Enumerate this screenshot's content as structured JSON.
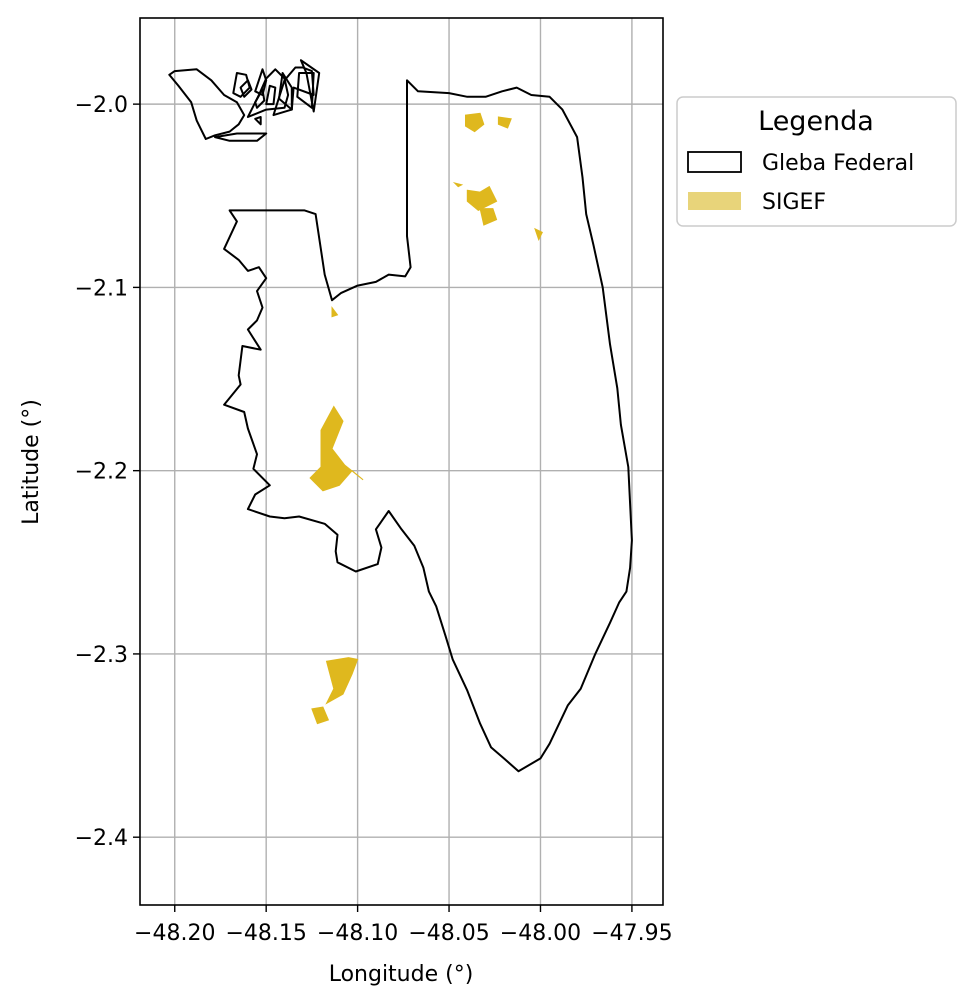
{
  "chart_data": {
    "type": "map",
    "xlabel": "Longitude (°)",
    "ylabel": "Latitude (°)",
    "xlim": [
      -48.219,
      -47.933
    ],
    "ylim": [
      -2.437,
      -1.953
    ],
    "grid": true,
    "x_ticks": [
      -48.2,
      -48.15,
      -48.1,
      -48.05,
      -48.0,
      -47.95
    ],
    "x_tick_labels": [
      "−48.20",
      "−48.15",
      "−48.10",
      "−48.05",
      "−48.00",
      "−47.95"
    ],
    "y_ticks": [
      -2.0,
      -2.1,
      -2.2,
      -2.3,
      -2.4
    ],
    "y_tick_labels": [
      "−2.0",
      "−2.1",
      "−2.2",
      "−2.3",
      "−2.4"
    ],
    "legend": {
      "title": "Legenda",
      "placement": "outside-right-top",
      "entries": [
        {
          "label": "Gleba Federal",
          "style": "outline",
          "color": "#000000"
        },
        {
          "label": "SIGEF",
          "style": "fill",
          "color": "#e8d47a"
        }
      ]
    },
    "colors": {
      "gleba_outline": "#000000",
      "sigef_fill": "#dfb81e",
      "grid": "#b0b0b0"
    },
    "layers": [
      {
        "name": "Gleba Federal",
        "features": [
          [
            [
              -48.2,
              -1.982
            ],
            [
              -48.188,
              -1.981
            ],
            [
              -48.18,
              -1.987
            ],
            [
              -48.173,
              -1.995
            ],
            [
              -48.166,
              -1.999
            ],
            [
              -48.162,
              -2.006
            ],
            [
              -48.165,
              -2.011
            ],
            [
              -48.17,
              -2.015
            ],
            [
              -48.178,
              -2.017
            ],
            [
              -48.183,
              -2.019
            ],
            [
              -48.188,
              -2.009
            ],
            [
              -48.191,
              -1.999
            ],
            [
              -48.198,
              -1.99
            ],
            [
              -48.203,
              -1.984
            ],
            [
              -48.2,
              -1.982
            ]
          ],
          [
            [
              -48.15,
              -1.986
            ],
            [
              -48.145,
              -1.981
            ],
            [
              -48.14,
              -1.986
            ],
            [
              -48.138,
              -1.995
            ],
            [
              -48.14,
              -2.002
            ],
            [
              -48.15,
              -2.003
            ],
            [
              -48.16,
              -2.007
            ],
            [
              -48.154,
              -1.995
            ],
            [
              -48.15,
              -1.986
            ]
          ],
          [
            [
              -48.168,
              -1.994
            ],
            [
              -48.166,
              -1.983
            ],
            [
              -48.161,
              -1.984
            ],
            [
              -48.159,
              -1.991
            ],
            [
              -48.164,
              -1.996
            ],
            [
              -48.168,
              -1.994
            ]
          ],
          [
            [
              -48.156,
              -1.993
            ],
            [
              -48.152,
              -1.981
            ],
            [
              -48.15,
              -1.987
            ],
            [
              -48.152,
              -1.995
            ],
            [
              -48.156,
              -1.993
            ]
          ],
          [
            [
              -48.164,
              -1.991
            ],
            [
              -48.16,
              -1.987
            ],
            [
              -48.158,
              -1.992
            ],
            [
              -48.162,
              -1.996
            ],
            [
              -48.164,
              -1.991
            ]
          ],
          [
            [
              -48.15,
              -2.0
            ],
            [
              -48.148,
              -1.99
            ],
            [
              -48.145,
              -1.991
            ],
            [
              -48.146,
              -2.0
            ],
            [
              -48.15,
              -2.0
            ]
          ],
          [
            [
              -48.146,
              -2.006
            ],
            [
              -48.14,
              -1.987
            ],
            [
              -48.134,
              -1.98
            ],
            [
              -48.13,
              -1.98
            ],
            [
              -48.125,
              -1.982
            ],
            [
              -48.124,
              -1.995
            ],
            [
              -48.135,
              -1.991
            ],
            [
              -48.136,
              -2.003
            ],
            [
              -48.146,
              -2.006
            ]
          ],
          [
            [
              -48.156,
              -1.999
            ],
            [
              -48.152,
              -1.992
            ],
            [
              -48.151,
              -1.998
            ],
            [
              -48.155,
              -2.002
            ],
            [
              -48.156,
              -1.999
            ]
          ],
          [
            [
              -48.136,
              -2.003
            ],
            [
              -48.136,
              -1.991
            ],
            [
              -48.141,
              -1.983
            ],
            [
              -48.143,
              -1.997
            ],
            [
              -48.136,
              -2.003
            ]
          ],
          [
            [
              -48.125,
              -2.002
            ],
            [
              -48.124,
              -1.983
            ],
            [
              -48.132,
              -1.983
            ],
            [
              -48.133,
              -1.996
            ],
            [
              -48.125,
              -2.002
            ]
          ],
          [
            [
              -48.15,
              -2.016
            ],
            [
              -48.166,
              -2.016
            ],
            [
              -48.178,
              -2.018
            ],
            [
              -48.17,
              -2.02
            ],
            [
              -48.155,
              -2.02
            ],
            [
              -48.15,
              -2.016
            ]
          ],
          [
            [
              -48.124,
              -2.004
            ],
            [
              -48.121,
              -1.983
            ],
            [
              -48.131,
              -1.976
            ],
            [
              -48.128,
              -1.983
            ],
            [
              -48.124,
              -2.004
            ]
          ],
          [
            [
              -48.153,
              -2.007
            ],
            [
              -48.156,
              -2.008
            ],
            [
              -48.153,
              -2.011
            ],
            [
              -48.153,
              -2.007
            ]
          ],
          [
            [
              -48.05,
              -1.994
            ],
            [
              -48.067,
              -1.993
            ],
            [
              -48.073,
              -1.987
            ],
            [
              -48.073,
              -2.009
            ],
            [
              -48.073,
              -2.072
            ],
            [
              -48.071,
              -2.089
            ],
            [
              -48.074,
              -2.094
            ],
            [
              -48.083,
              -2.093
            ],
            [
              -48.09,
              -2.097
            ],
            [
              -48.1,
              -2.099
            ],
            [
              -48.109,
              -2.103
            ],
            [
              -48.114,
              -2.107
            ],
            [
              -48.118,
              -2.093
            ],
            [
              -48.123,
              -2.06
            ],
            [
              -48.129,
              -2.058
            ],
            [
              -48.148,
              -2.058
            ],
            [
              -48.17,
              -2.058
            ],
            [
              -48.166,
              -2.064
            ],
            [
              -48.173,
              -2.079
            ],
            [
              -48.165,
              -2.085
            ],
            [
              -48.16,
              -2.091
            ],
            [
              -48.154,
              -2.089
            ],
            [
              -48.15,
              -2.095
            ],
            [
              -48.155,
              -2.102
            ],
            [
              -48.152,
              -2.111
            ],
            [
              -48.155,
              -2.118
            ],
            [
              -48.16,
              -2.123
            ],
            [
              -48.153,
              -2.134
            ],
            [
              -48.163,
              -2.132
            ],
            [
              -48.165,
              -2.148
            ],
            [
              -48.164,
              -2.153
            ],
            [
              -48.173,
              -2.164
            ],
            [
              -48.162,
              -2.168
            ],
            [
              -48.16,
              -2.177
            ],
            [
              -48.155,
              -2.191
            ],
            [
              -48.157,
              -2.199
            ],
            [
              -48.148,
              -2.208
            ],
            [
              -48.156,
              -2.213
            ],
            [
              -48.16,
              -2.221
            ],
            [
              -48.148,
              -2.225
            ],
            [
              -48.14,
              -2.226
            ],
            [
              -48.132,
              -2.225
            ],
            [
              -48.118,
              -2.229
            ],
            [
              -48.111,
              -2.235
            ],
            [
              -48.112,
              -2.244
            ],
            [
              -48.111,
              -2.25
            ],
            [
              -48.101,
              -2.255
            ],
            [
              -48.089,
              -2.251
            ],
            [
              -48.087,
              -2.242
            ],
            [
              -48.09,
              -2.232
            ],
            [
              -48.083,
              -2.222
            ],
            [
              -48.076,
              -2.232
            ],
            [
              -48.069,
              -2.241
            ],
            [
              -48.064,
              -2.253
            ],
            [
              -48.061,
              -2.266
            ],
            [
              -48.057,
              -2.274
            ],
            [
              -48.052,
              -2.29
            ],
            [
              -48.048,
              -2.303
            ],
            [
              -48.04,
              -2.32
            ],
            [
              -48.033,
              -2.338
            ],
            [
              -48.027,
              -2.351
            ],
            [
              -48.02,
              -2.357
            ],
            [
              -48.012,
              -2.364
            ],
            [
              -48.0,
              -2.357
            ],
            [
              -47.995,
              -2.349
            ],
            [
              -47.985,
              -2.328
            ],
            [
              -47.978,
              -2.319
            ],
            [
              -47.97,
              -2.3
            ],
            [
              -47.962,
              -2.283
            ],
            [
              -47.957,
              -2.272
            ],
            [
              -47.953,
              -2.266
            ],
            [
              -47.951,
              -2.253
            ],
            [
              -47.95,
              -2.238
            ],
            [
              -47.951,
              -2.218
            ],
            [
              -47.952,
              -2.198
            ],
            [
              -47.956,
              -2.175
            ],
            [
              -47.958,
              -2.155
            ],
            [
              -47.962,
              -2.131
            ],
            [
              -47.966,
              -2.1
            ],
            [
              -47.971,
              -2.077
            ],
            [
              -47.975,
              -2.06
            ],
            [
              -47.977,
              -2.04
            ],
            [
              -47.98,
              -2.018
            ],
            [
              -47.988,
              -2.003
            ],
            [
              -47.995,
              -1.996
            ],
            [
              -48.005,
              -1.995
            ],
            [
              -48.013,
              -1.991
            ],
            [
              -48.021,
              -1.993
            ],
            [
              -48.03,
              -1.996
            ],
            [
              -48.04,
              -1.996
            ],
            [
              -48.05,
              -1.994
            ]
          ]
        ]
      },
      {
        "name": "SIGEF",
        "features": [
          [
            [
              -48.041,
              -2.006
            ],
            [
              -48.033,
              -2.005
            ],
            [
              -48.031,
              -2.011
            ],
            [
              -48.036,
              -2.015
            ],
            [
              -48.041,
              -2.012
            ],
            [
              -48.041,
              -2.006
            ]
          ],
          [
            [
              -48.023,
              -2.007
            ],
            [
              -48.016,
              -2.008
            ],
            [
              -48.018,
              -2.013
            ],
            [
              -48.023,
              -2.011
            ],
            [
              -48.023,
              -2.007
            ]
          ],
          [
            [
              -48.04,
              -2.047
            ],
            [
              -48.033,
              -2.048
            ],
            [
              -48.028,
              -2.045
            ],
            [
              -48.024,
              -2.053
            ],
            [
              -48.034,
              -2.058
            ],
            [
              -48.04,
              -2.053
            ],
            [
              -48.04,
              -2.047
            ]
          ],
          [
            [
              -48.033,
              -2.057
            ],
            [
              -48.026,
              -2.057
            ],
            [
              -48.024,
              -2.063
            ],
            [
              -48.031,
              -2.066
            ],
            [
              -48.033,
              -2.057
            ]
          ],
          [
            [
              -48.003,
              -2.068
            ],
            [
              -47.999,
              -2.07
            ],
            [
              -48.001,
              -2.074
            ],
            [
              -48.003,
              -2.068
            ]
          ],
          [
            [
              -48.047,
              -2.043
            ],
            [
              -48.045,
              -2.045
            ],
            [
              -48.043,
              -2.044
            ],
            [
              -48.047,
              -2.043
            ]
          ],
          [
            [
              -48.114,
              -2.111
            ],
            [
              -48.111,
              -2.115
            ],
            [
              -48.114,
              -2.116
            ],
            [
              -48.114,
              -2.111
            ]
          ],
          [
            [
              -48.108,
              -2.173
            ],
            [
              -48.113,
              -2.165
            ],
            [
              -48.12,
              -2.178
            ],
            [
              -48.12,
              -2.198
            ],
            [
              -48.126,
              -2.204
            ],
            [
              -48.119,
              -2.211
            ],
            [
              -48.11,
              -2.208
            ],
            [
              -48.103,
              -2.2
            ],
            [
              -48.097,
              -2.205
            ],
            [
              -48.107,
              -2.197
            ],
            [
              -48.114,
              -2.188
            ],
            [
              -48.108,
              -2.173
            ]
          ],
          [
            [
              -48.117,
              -2.304
            ],
            [
              -48.105,
              -2.302
            ],
            [
              -48.1,
              -2.303
            ],
            [
              -48.103,
              -2.311
            ],
            [
              -48.108,
              -2.322
            ],
            [
              -48.117,
              -2.327
            ],
            [
              -48.113,
              -2.319
            ],
            [
              -48.117,
              -2.304
            ]
          ],
          [
            [
              -48.125,
              -2.33
            ],
            [
              -48.119,
              -2.329
            ],
            [
              -48.116,
              -2.336
            ],
            [
              -48.122,
              -2.338
            ],
            [
              -48.125,
              -2.33
            ]
          ]
        ]
      }
    ]
  }
}
